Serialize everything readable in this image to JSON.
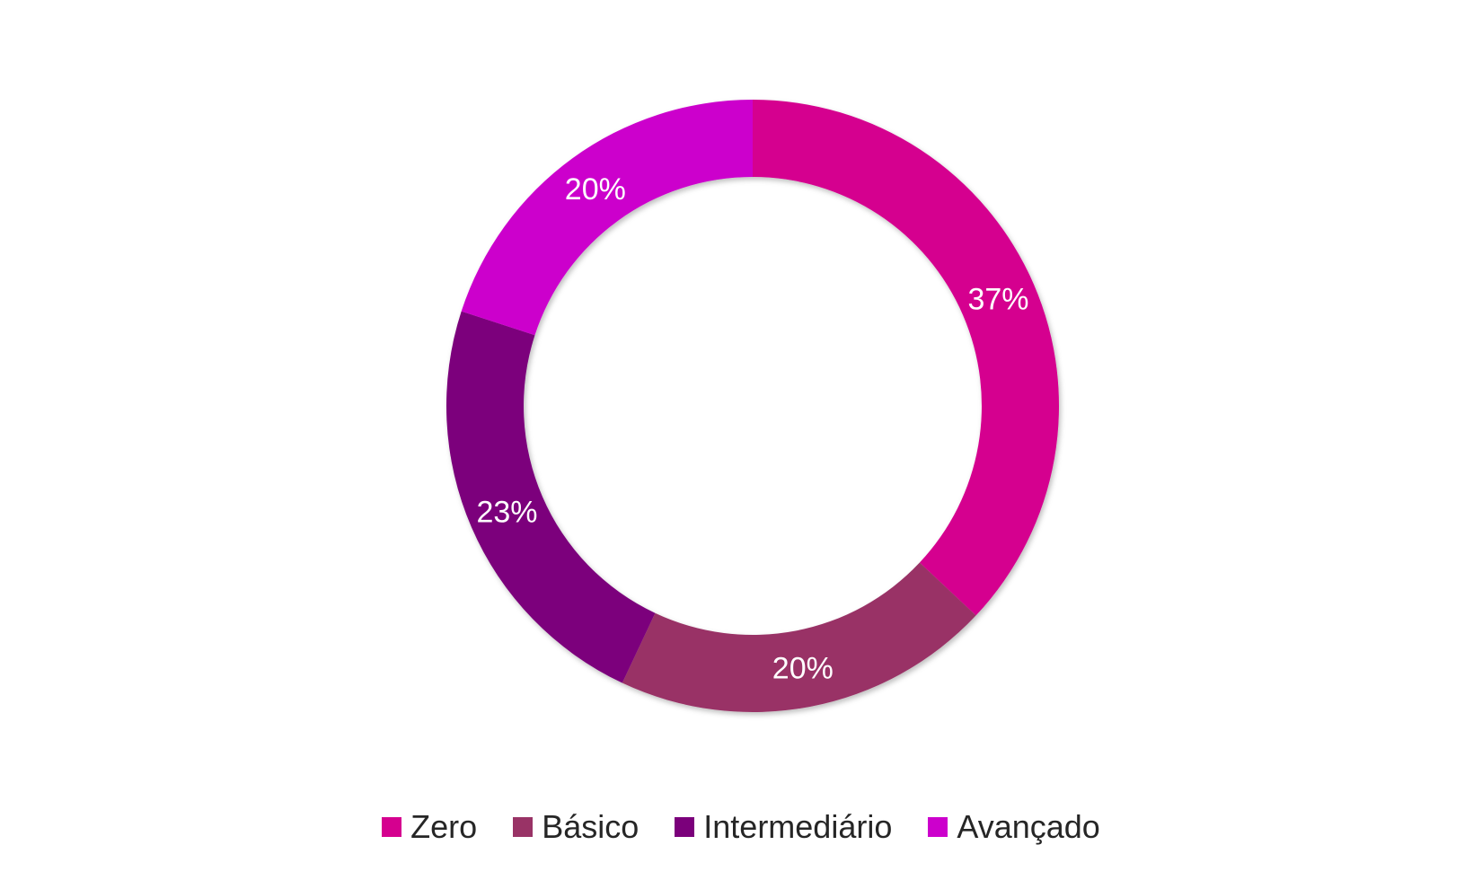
{
  "chart_data": {
    "type": "pie",
    "donut": true,
    "title": "",
    "categories": [
      "Zero",
      "Básico",
      "Intermediário",
      "Avançado"
    ],
    "values": [
      37,
      20,
      23,
      20
    ],
    "labels": [
      "37%",
      "20%",
      "23%",
      "20%"
    ],
    "colors": [
      "#D5008F",
      "#993366",
      "#7B007B",
      "#CC00CC"
    ],
    "legend": "bottom"
  }
}
